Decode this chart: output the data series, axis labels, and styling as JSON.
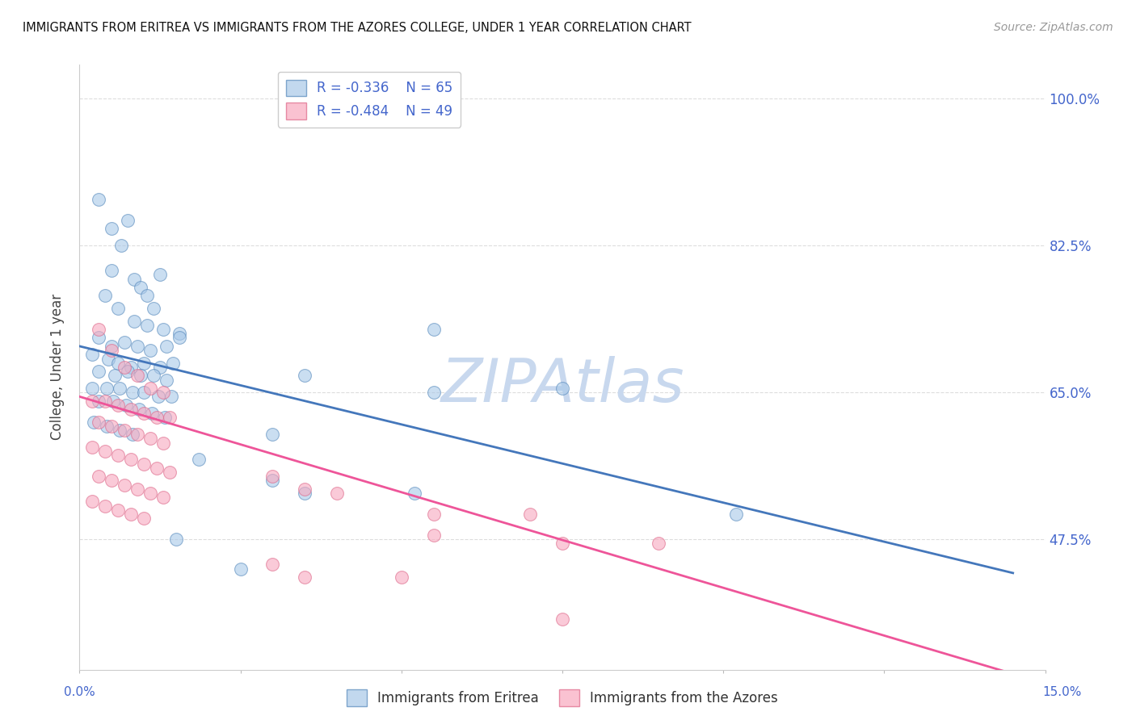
{
  "title": "IMMIGRANTS FROM ERITREA VS IMMIGRANTS FROM THE AZORES COLLEGE, UNDER 1 YEAR CORRELATION CHART",
  "source": "Source: ZipAtlas.com",
  "ylabel": "College, Under 1 year",
  "yticks": [
    47.5,
    65.0,
    82.5,
    100.0
  ],
  "ytick_labels": [
    "47.5%",
    "65.0%",
    "82.5%",
    "100.0%"
  ],
  "xmin": 0.0,
  "xmax": 15.0,
  "ymin": 32.0,
  "ymax": 104.0,
  "legend_r1": "R = -0.336",
  "legend_n1": "N = 65",
  "legend_r2": "R = -0.484",
  "legend_n2": "N = 49",
  "color_blue_fill": "#a8c8e8",
  "color_blue_edge": "#5588bb",
  "color_blue_line": "#4477bb",
  "color_pink_fill": "#f8a8be",
  "color_pink_edge": "#dd6688",
  "color_pink_line": "#ee5599",
  "color_text_blue": "#4466cc",
  "color_axis_label": "#444444",
  "watermark_color": "#c8d8ee",
  "background": "#ffffff",
  "grid_color": "#dddddd",
  "scatter_blue": [
    [
      0.3,
      88.0
    ],
    [
      0.5,
      84.5
    ],
    [
      0.65,
      82.5
    ],
    [
      0.75,
      85.5
    ],
    [
      0.5,
      79.5
    ],
    [
      0.85,
      78.5
    ],
    [
      0.95,
      77.5
    ],
    [
      1.05,
      76.5
    ],
    [
      1.15,
      75.0
    ],
    [
      1.25,
      79.0
    ],
    [
      0.4,
      76.5
    ],
    [
      0.6,
      75.0
    ],
    [
      0.85,
      73.5
    ],
    [
      1.05,
      73.0
    ],
    [
      1.3,
      72.5
    ],
    [
      1.55,
      72.0
    ],
    [
      0.3,
      71.5
    ],
    [
      0.5,
      70.5
    ],
    [
      0.7,
      71.0
    ],
    [
      0.9,
      70.5
    ],
    [
      1.1,
      70.0
    ],
    [
      1.35,
      70.5
    ],
    [
      1.55,
      71.5
    ],
    [
      0.2,
      69.5
    ],
    [
      0.45,
      69.0
    ],
    [
      0.6,
      68.5
    ],
    [
      0.8,
      68.0
    ],
    [
      1.0,
      68.5
    ],
    [
      1.25,
      68.0
    ],
    [
      1.45,
      68.5
    ],
    [
      0.3,
      67.5
    ],
    [
      0.55,
      67.0
    ],
    [
      0.75,
      67.5
    ],
    [
      0.95,
      67.0
    ],
    [
      1.15,
      67.0
    ],
    [
      1.35,
      66.5
    ],
    [
      0.2,
      65.5
    ],
    [
      0.42,
      65.5
    ],
    [
      0.62,
      65.5
    ],
    [
      0.82,
      65.0
    ],
    [
      1.0,
      65.0
    ],
    [
      1.22,
      64.5
    ],
    [
      1.42,
      64.5
    ],
    [
      0.3,
      64.0
    ],
    [
      0.52,
      64.0
    ],
    [
      0.72,
      63.5
    ],
    [
      0.92,
      63.0
    ],
    [
      1.12,
      62.5
    ],
    [
      1.32,
      62.0
    ],
    [
      0.22,
      61.5
    ],
    [
      0.42,
      61.0
    ],
    [
      0.62,
      60.5
    ],
    [
      0.82,
      60.0
    ],
    [
      5.5,
      72.5
    ],
    [
      3.5,
      67.0
    ],
    [
      5.5,
      65.0
    ],
    [
      7.5,
      65.5
    ],
    [
      10.2,
      50.5
    ],
    [
      1.85,
      57.0
    ],
    [
      3.0,
      60.0
    ],
    [
      3.0,
      54.5
    ],
    [
      3.5,
      53.0
    ],
    [
      5.2,
      53.0
    ],
    [
      1.5,
      47.5
    ],
    [
      2.5,
      44.0
    ]
  ],
  "scatter_pink": [
    [
      0.3,
      72.5
    ],
    [
      0.5,
      70.0
    ],
    [
      0.7,
      68.0
    ],
    [
      0.9,
      67.0
    ],
    [
      1.1,
      65.5
    ],
    [
      1.3,
      65.0
    ],
    [
      0.2,
      64.0
    ],
    [
      0.4,
      64.0
    ],
    [
      0.6,
      63.5
    ],
    [
      0.8,
      63.0
    ],
    [
      1.0,
      62.5
    ],
    [
      1.2,
      62.0
    ],
    [
      1.4,
      62.0
    ],
    [
      0.3,
      61.5
    ],
    [
      0.5,
      61.0
    ],
    [
      0.7,
      60.5
    ],
    [
      0.9,
      60.0
    ],
    [
      1.1,
      59.5
    ],
    [
      1.3,
      59.0
    ],
    [
      0.2,
      58.5
    ],
    [
      0.4,
      58.0
    ],
    [
      0.6,
      57.5
    ],
    [
      0.8,
      57.0
    ],
    [
      1.0,
      56.5
    ],
    [
      1.2,
      56.0
    ],
    [
      1.4,
      55.5
    ],
    [
      0.3,
      55.0
    ],
    [
      0.5,
      54.5
    ],
    [
      0.7,
      54.0
    ],
    [
      0.9,
      53.5
    ],
    [
      1.1,
      53.0
    ],
    [
      1.3,
      52.5
    ],
    [
      0.2,
      52.0
    ],
    [
      0.4,
      51.5
    ],
    [
      0.6,
      51.0
    ],
    [
      0.8,
      50.5
    ],
    [
      1.0,
      50.0
    ],
    [
      3.0,
      55.0
    ],
    [
      3.5,
      53.5
    ],
    [
      4.0,
      53.0
    ],
    [
      5.5,
      50.5
    ],
    [
      7.0,
      50.5
    ],
    [
      5.5,
      48.0
    ],
    [
      7.5,
      47.0
    ],
    [
      9.0,
      47.0
    ],
    [
      3.0,
      44.5
    ],
    [
      3.5,
      43.0
    ],
    [
      5.0,
      43.0
    ],
    [
      7.5,
      38.0
    ]
  ],
  "blue_line_x": [
    0.0,
    14.5
  ],
  "blue_line_y": [
    70.5,
    43.5
  ],
  "pink_line_x": [
    0.0,
    14.5
  ],
  "pink_line_y": [
    64.5,
    31.5
  ]
}
